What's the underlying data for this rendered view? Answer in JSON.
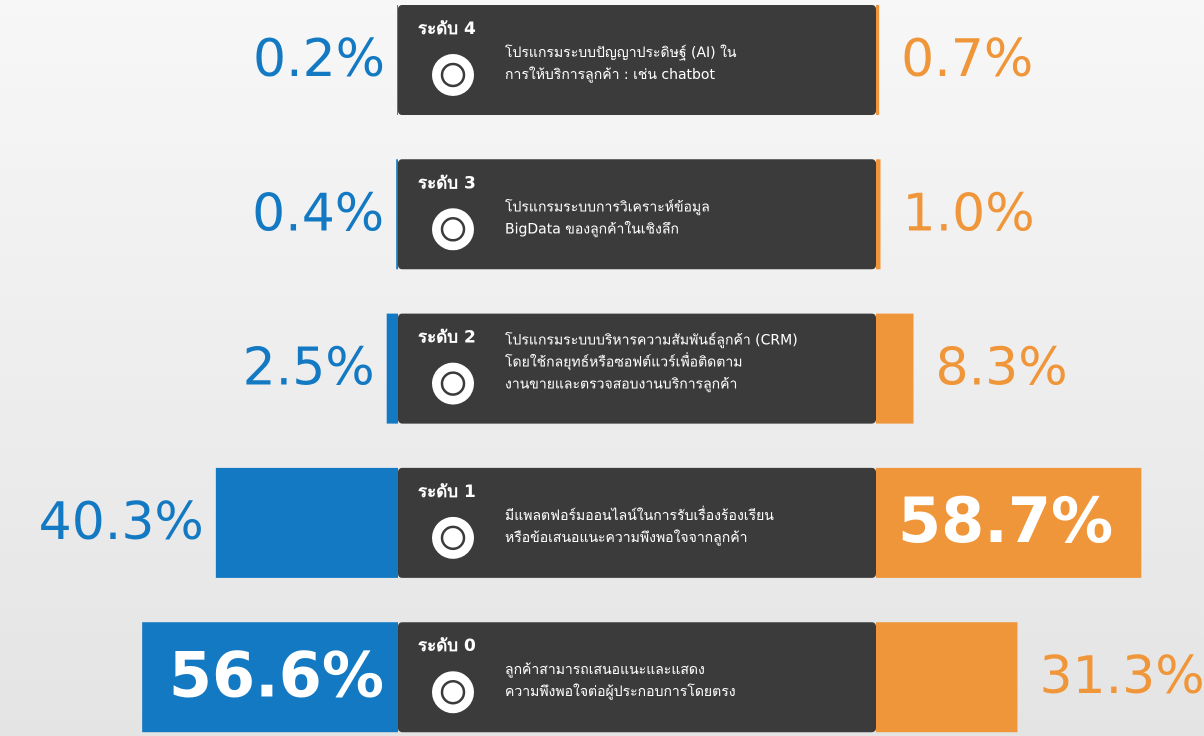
{
  "chart_data": {
    "type": "butterfly",
    "categories": [
      "ระดับ 4",
      "ระดับ 3",
      "ระดับ 2",
      "ระดับ 1",
      "ระดับ 0"
    ],
    "descriptions": [
      [
        "โปรแกรมระบบปัญญาประดิษฐ์ (AI) ใน",
        "การให้บริการลูกค้า : เช่น chatbot"
      ],
      [
        "โปรแกรมระบบการวิเคราะห์ข้อมูล",
        "BigData ของลูกค้าในเชิงลึก"
      ],
      [
        "โปรแกรมระบบบริหารความสัมพันธ์ลูกค้า (CRM)",
        "โดยใช้กลยุทธ์หรือซอฟต์แวร์เพื่อติดตาม",
        "งานขายและตรวจสอบงานบริการลูกค้า"
      ],
      [
        "มีแพลตฟอร์มออนไลน์ในการรับเรื่องร้องเรียน",
        "หรือข้อเสนอแนะความพึงพอใจจากลูกค้า"
      ],
      [
        "ลูกค้าสามารถเสนอแนะและแสดง",
        "ความพึงพอใจต่อผู้ประกอบการโดยตรง"
      ]
    ],
    "series": [
      {
        "color": "#1479c3",
        "values": [
          0.2,
          0.4,
          2.5,
          40.3,
          56.6
        ],
        "value_labels": [
          "0.2%",
          "0.4%",
          "2.5%",
          "40.3%",
          "56.6%"
        ]
      },
      {
        "color": "#f0963a",
        "values": [
          0.7,
          1.0,
          8.3,
          58.7,
          31.3
        ],
        "value_labels": [
          "0.7%",
          "1.0%",
          "8.3%",
          "58.7%",
          "31.3%"
        ]
      }
    ]
  }
}
